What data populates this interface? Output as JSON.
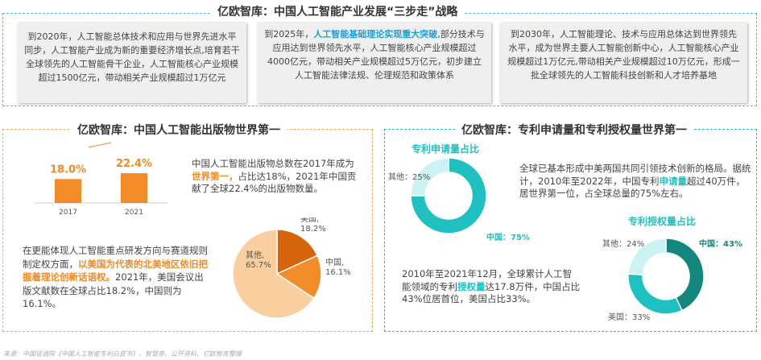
{
  "top": {
    "title": "亿欧智库：中国人工智能产业发展“三步走”战略",
    "cards": [
      {
        "pre": "到2020年，人工智能总体技术和应用与世界先进水平同步，人工智能产业成为新的重要经济增长点,培育若干全球领先的人工智能骨干企业，人工智能核心产业规模超过1500亿元，带动相关产业规模超过1万亿元",
        "hl": "",
        "post": ""
      },
      {
        "pre": "到2025年，",
        "hl": "人工智能基础理论实现重大突破",
        "post": ",部分技术与应用达到世界领先水平，人工智能核心产业规模超过4000亿元，带动相关产业规模超过5万亿元，初步建立人工智能法律法规、伦理规范和政策体系"
      },
      {
        "pre": "到2030年，人工智能理论、技术与应用总体达到世界领先水平，成为世界主要人工智能创新中心，人工智能核心产业规模超过1万亿元,带动相关产业规模超过10万亿元，形成一批全球领先的人工智能科技创新和人才培养基地",
        "hl": "",
        "post": ""
      }
    ]
  },
  "left": {
    "title": "亿欧智库：中国人工智能出版物世界第一",
    "text1": {
      "pre": "中国人工智能出版物总数在2017年成为",
      "hl": "世界第一，",
      "post": "占比达18%，2021年中国贡献了全球22.4%的出版物数量。"
    },
    "text2": {
      "pre": "在更能体现人工智能重点研发方向与赛道规则制定权方面，",
      "hl": "以美国为代表的北美地区依旧把握着理论创新话语权。",
      "post": "2021年，美国会议出版文献数在全球占比18.2%，中国则为16.1%。"
    }
  },
  "right": {
    "title": "亿欧智库：专利申请量和专利授权量世界第一",
    "text1": {
      "pre": "全球已基本形成中美两国共同引领技术创新的格局。据统计，2010年至2022年，中国专利",
      "hl": "申请量",
      "post": "超过40万件，居世界第一位，占全球总量的75%左右。"
    },
    "text2": {
      "pre": "2010年至2021年12月，全球累计人工智能领域的专利",
      "hl": "授权量",
      "post": "达17.8万件，中国占比43%位居首位，美国占比33%。"
    }
  },
  "source": "来源：中国信通院《中国人工智能专利白皮书》、智慧芽、公开资料、亿欧智库整理",
  "colors": {
    "orange": "#f08a24",
    "blue_border": "#4db8e0",
    "orange_border": "#f5a65b",
    "teal": "#1fc1c0",
    "teal_dark": "#13877d",
    "teal_light": "#cdf2f3"
  },
  "chart_data": [
    {
      "type": "bar",
      "categories": [
        "2017",
        "2021"
      ],
      "values": [
        18.0,
        22.4
      ],
      "data_labels": [
        "18.0%",
        "22.4%"
      ],
      "color": "#f28c28"
    },
    {
      "type": "pie",
      "slices": [
        {
          "name": "美国",
          "value": 18.2,
          "label": "美国,",
          "pct": "18.2%",
          "color": "#d4650a"
        },
        {
          "name": "中国",
          "value": 16.1,
          "label": "中国,",
          "pct": "16.1%",
          "color": "#f28c28"
        },
        {
          "name": "其他",
          "value": 65.7,
          "label": "其他,",
          "pct": "65.7%",
          "color": "#f9cf9f"
        }
      ]
    },
    {
      "type": "pie",
      "donut": true,
      "title": "专利申请量占比",
      "slices": [
        {
          "name": "中国",
          "value": 75,
          "label": "中国：75%",
          "color": "#1fc1c0"
        },
        {
          "name": "其他",
          "value": 25,
          "label": "其他：25%",
          "color": "#cdf2f3"
        }
      ]
    },
    {
      "type": "pie",
      "donut": true,
      "title": "专利授权量占比",
      "slices": [
        {
          "name": "中国",
          "value": 43,
          "label": "中国：43%",
          "color": "#13877d"
        },
        {
          "name": "美国",
          "value": 33,
          "label": "美国：33%",
          "color": "#1fc1c0"
        },
        {
          "name": "其他",
          "value": 24,
          "label": "其他：24%",
          "color": "#cdf2f3"
        }
      ]
    }
  ]
}
